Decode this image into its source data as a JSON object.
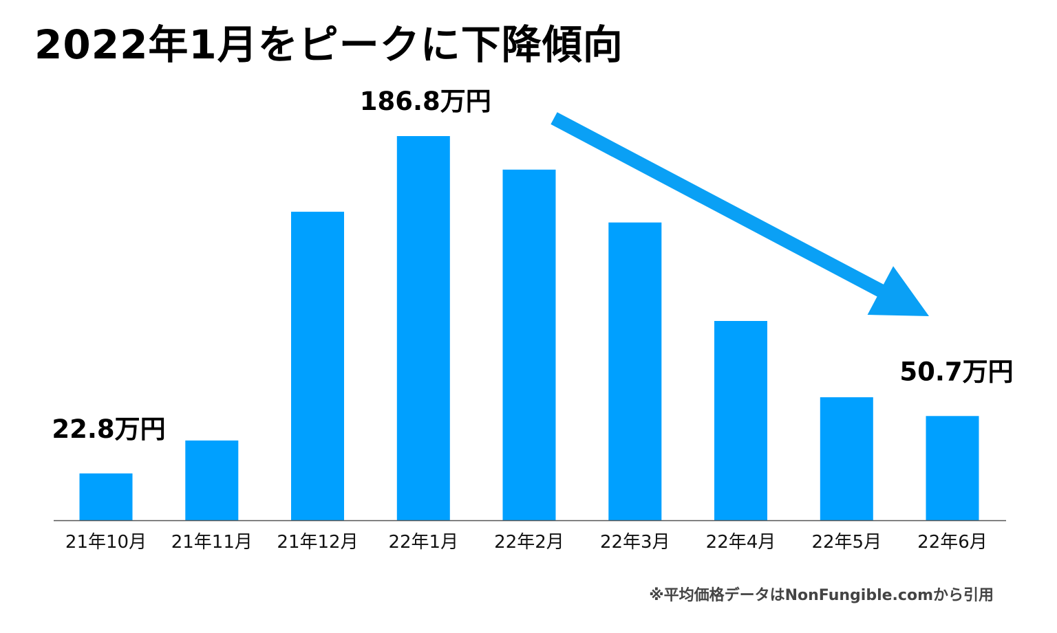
{
  "chart_data": {
    "type": "bar",
    "title": "2022年1月をピークに下降傾向",
    "categories": [
      "21年10月",
      "21年11月",
      "21年12月",
      "22年1月",
      "22年2月",
      "22年3月",
      "22年4月",
      "22年5月",
      "22年6月"
    ],
    "values": [
      22.8,
      38.8,
      150.0,
      186.8,
      170.5,
      144.8,
      96.9,
      59.8,
      50.7
    ],
    "unit": "万円",
    "ylim": [
      0,
      190
    ],
    "grid": false,
    "xlabel": "",
    "ylabel": "",
    "data_labels": [
      {
        "category_index": 0,
        "text": "22.8万円"
      },
      {
        "category_index": 3,
        "text": "186.8万円"
      },
      {
        "category_index": 8,
        "text": "50.7万円"
      }
    ],
    "annotations": [
      {
        "type": "arrow",
        "direction": "down-right",
        "meaning": "下降傾向",
        "from_category_index": 4,
        "to_category_index": 8
      }
    ],
    "source_note": "※平均価格データはNonFungible.comから引用"
  },
  "colors": {
    "bar": "#00a0ff",
    "arrow": "#0aa0f5",
    "axis": "#555555",
    "text": "#000000"
  }
}
